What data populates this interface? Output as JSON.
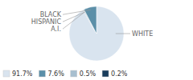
{
  "chart_data": {
    "type": "pie",
    "categories": [
      "WHITE",
      "A.I.",
      "HISPANIC",
      "BLACK"
    ],
    "values": [
      91.7,
      0.2,
      0.5,
      7.6
    ],
    "value_labels": [
      "91.7%",
      "0.2%",
      "0.5%",
      "7.6%"
    ],
    "colors": [
      "#d9e4ef",
      "#1a3d5c",
      "#a8bfcf",
      "#5b8fa8"
    ],
    "legend": "lower left"
  }
}
